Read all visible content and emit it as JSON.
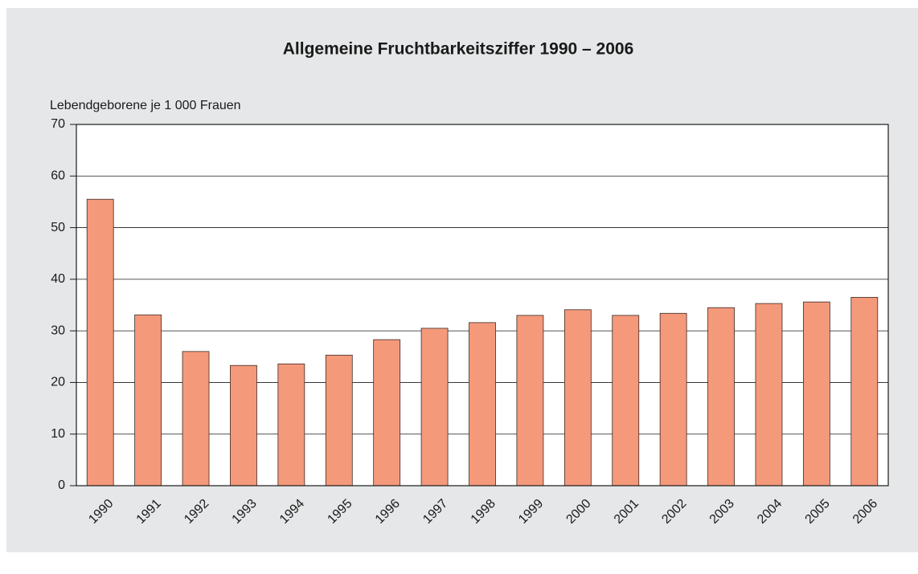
{
  "chart_data": {
    "type": "bar",
    "title": "Allgemeine Fruchtbarkeitsziffer 1990 – 2006",
    "y_label": "Lebendgeborene je 1 000 Frauen",
    "categories": [
      "1990",
      "1991",
      "1992",
      "1993",
      "1994",
      "1995",
      "1996",
      "1997",
      "1998",
      "1999",
      "2000",
      "2001",
      "2002",
      "2003",
      "2004",
      "2005",
      "2006"
    ],
    "values": [
      55.5,
      33.1,
      26.0,
      23.3,
      23.6,
      25.3,
      28.3,
      30.5,
      31.6,
      33.0,
      34.1,
      33.0,
      33.4,
      34.5,
      35.3,
      35.6,
      36.5
    ],
    "color": "#f5997b",
    "ylim": [
      0,
      70
    ],
    "yticks": [
      0,
      10,
      20,
      30,
      40,
      50,
      60,
      70
    ],
    "grid": true
  }
}
